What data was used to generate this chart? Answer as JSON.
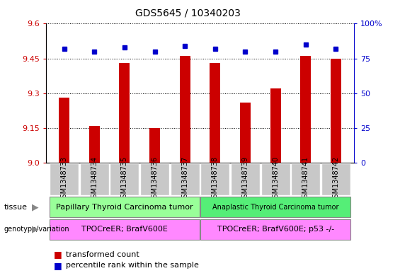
{
  "title": "GDS5645 / 10340203",
  "samples": [
    "GSM1348733",
    "GSM1348734",
    "GSM1348735",
    "GSM1348736",
    "GSM1348737",
    "GSM1348738",
    "GSM1348739",
    "GSM1348740",
    "GSM1348741",
    "GSM1348742"
  ],
  "transformed_counts": [
    9.28,
    9.16,
    9.43,
    9.15,
    9.46,
    9.43,
    9.26,
    9.32,
    9.46,
    9.45
  ],
  "percentile_ranks": [
    82,
    80,
    83,
    80,
    84,
    82,
    80,
    80,
    85,
    82
  ],
  "ylim": [
    9.0,
    9.6
  ],
  "yticks": [
    9.0,
    9.15,
    9.3,
    9.45,
    9.6
  ],
  "y2lim": [
    0,
    100
  ],
  "y2ticks": [
    0,
    25,
    50,
    75,
    100
  ],
  "y2ticklabels": [
    "0",
    "25",
    "50",
    "75",
    "100%"
  ],
  "bar_color": "#cc0000",
  "dot_color": "#0000cc",
  "tissue_labels": [
    "Papillary Thyroid Carcinoma tumor",
    "Anaplastic Thyroid Carcinoma tumor"
  ],
  "tissue_color1": "#99ff99",
  "tissue_color2": "#55ee77",
  "genotype_labels": [
    "TPOCreER; BrafV600E",
    "TPOCreER; BrafV600E; p53 -/-"
  ],
  "genotype_color": "#ff88ff",
  "split_index": 5,
  "legend_red": "transformed count",
  "legend_blue": "percentile rank within the sample",
  "bar_color_hex": "#cc0000",
  "dot_color_hex": "#0000cc",
  "tick_color_left": "#cc0000",
  "tick_color_right": "#0000cc",
  "grid_color": "#000000",
  "title_fontsize": 10,
  "tick_fontsize": 8,
  "sample_fontsize": 7,
  "annot_fontsize": 8,
  "legend_fontsize": 8
}
